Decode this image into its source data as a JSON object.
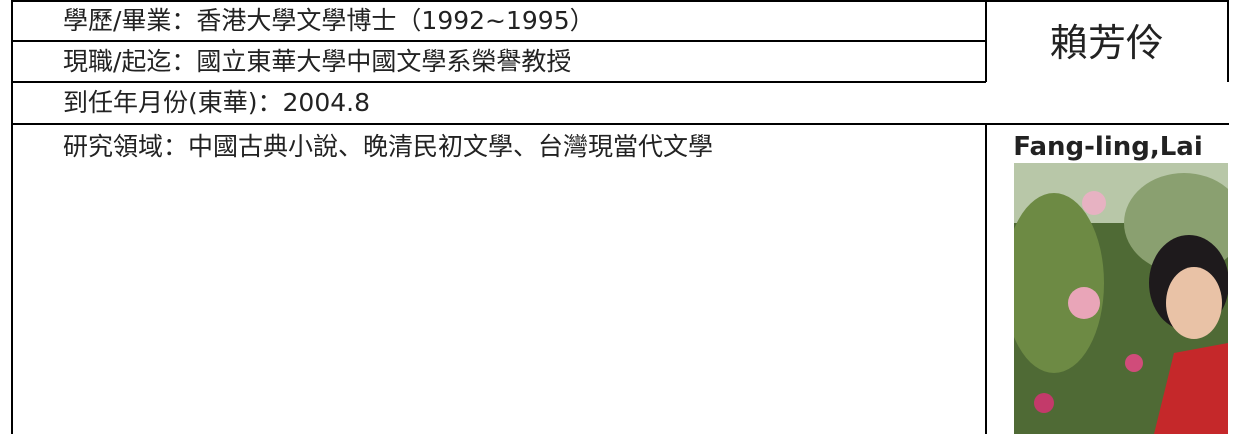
{
  "table": {
    "rows": [
      "學歷/畢業：香港大學文學博士（1992~1995）",
      "現職/起迄：國立東華大學中國文學系榮譽教授",
      "到任年月份(東華)：2004.8",
      "研究領域：中國古典小說、晚清民初文學、台灣現當代文學"
    ]
  },
  "profile": {
    "name_zh": "賴芳伶",
    "name_en": "Fang-ling,Lai"
  }
}
